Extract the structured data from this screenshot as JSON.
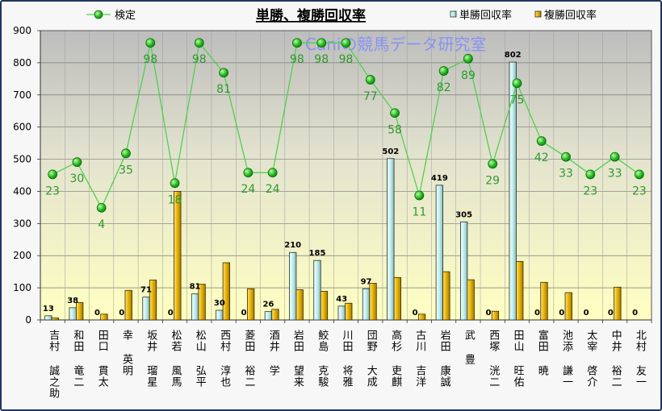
{
  "chart_data": {
    "type": "bar",
    "title": "単勝、複勝回収率",
    "watermark": "Caniの競馬データ研究室",
    "categories": [
      "吉村 誠之助",
      "和田 竜二",
      "田口 貫太",
      "幸 英明",
      "坂井 瑠星",
      "松若 風馬",
      "松山 弘平",
      "西村 淳也",
      "菱田 裕二",
      "酒井 学",
      "岩田 望来",
      "鮫島 克駿",
      "川田 将雅",
      "団野 大成",
      "高杉 吏麒",
      "古川 吉洋",
      "岩田 康誠",
      "武 豊",
      "西塚 洸二",
      "田山 旺佑",
      "富田 暁",
      "池添 謙一",
      "太宰 啓介",
      "中井 裕二",
      "北村 友一"
    ],
    "series": [
      {
        "name": "単勝回収率",
        "type": "bar",
        "color": "#c4eeee",
        "values": [
          13,
          38,
          0,
          0,
          71,
          0,
          81,
          30,
          0,
          26,
          210,
          185,
          43,
          97,
          502,
          0,
          419,
          305,
          0,
          802,
          0,
          0,
          0,
          0,
          0
        ]
      },
      {
        "name": "複勝回収率",
        "type": "bar",
        "color": "#e7b100",
        "values": [
          6,
          54,
          18,
          92,
          124,
          400,
          111,
          178,
          97,
          33,
          94,
          89,
          52,
          114,
          132,
          18,
          150,
          125,
          27,
          182,
          117,
          85,
          0,
          102,
          0
        ]
      },
      {
        "name": "検定",
        "type": "line",
        "color": "#33bb33",
        "values": [
          23,
          30,
          4,
          35,
          98,
          18,
          98,
          81,
          24,
          24,
          98,
          98,
          98,
          77,
          58,
          11,
          82,
          89,
          29,
          75,
          42,
          33,
          23,
          33,
          23
        ]
      }
    ],
    "ylim": [
      0,
      900
    ],
    "yticks": [
      0,
      100,
      200,
      300,
      400,
      500,
      600,
      700,
      800,
      900
    ],
    "y2lim": [
      -60,
      105
    ],
    "grid": true,
    "legend": {
      "kentei": "top-left",
      "bars": "top-right"
    }
  },
  "colors": {
    "frame": "#23355e",
    "plot_top": "#bdbdbd",
    "plot_bottom": "#ffffc2",
    "line_labels": "#2f9a2f",
    "watermark": "#7f8cff"
  }
}
